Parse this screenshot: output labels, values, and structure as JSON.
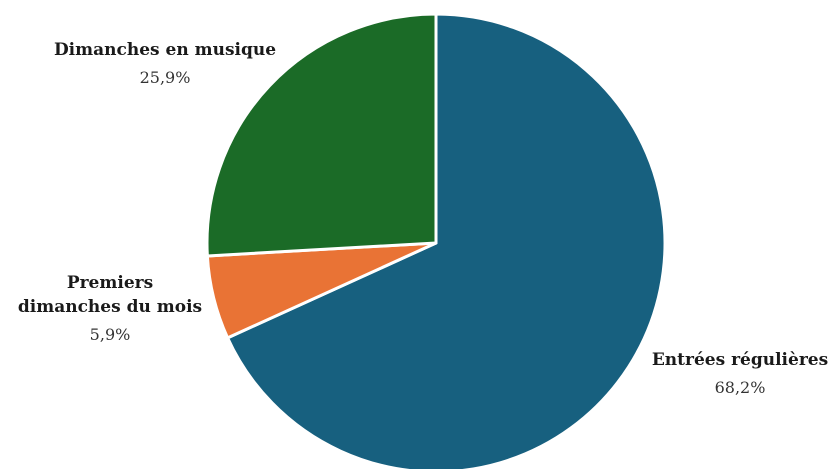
{
  "chart_data": {
    "type": "pie",
    "title": "",
    "slices": [
      {
        "label": "Entrées régulières",
        "label_lines": [
          "Entrées régulières"
        ],
        "value_label": "68,2%",
        "value": 68.2,
        "color": "#17607f"
      },
      {
        "label": "Premiers dimanches du mois",
        "label_lines": [
          "Premiers",
          "dimanches du mois"
        ],
        "value_label": "5,9%",
        "value": 5.9,
        "color": "#e97335"
      },
      {
        "label": "Dimanches en musique",
        "label_lines": [
          "Dimanches en musique"
        ],
        "value_label": "25,9%",
        "value": 25.9,
        "color": "#1b6b27"
      }
    ],
    "start": "12 o'clock",
    "direction": "clockwise",
    "legend": "none"
  }
}
